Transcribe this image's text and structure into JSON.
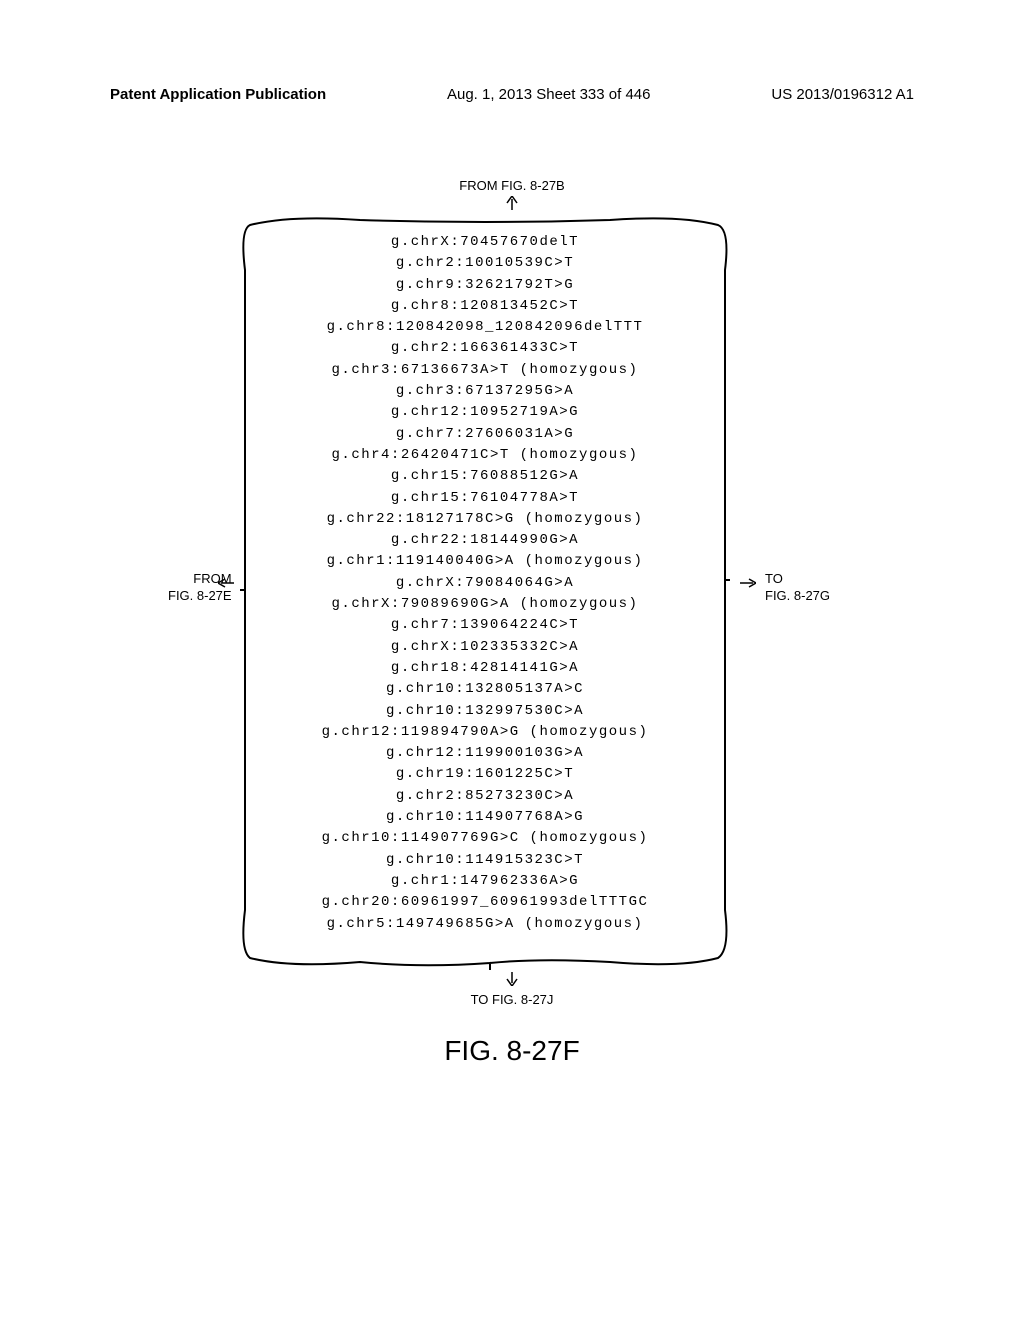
{
  "header": {
    "left": "Patent Application Publication",
    "center": "Aug. 1, 2013  Sheet 333 of 446",
    "right": "US 2013/0196312 A1"
  },
  "labels": {
    "top": "FROM FIG. 8-27B",
    "bottom": "TO FIG. 8-27J",
    "left_from": "FROM",
    "left_fig": "FIG. 8-27E",
    "right_to": "TO",
    "right_fig": "FIG. 8-27G"
  },
  "caption": "FIG. 8-27F",
  "entries": [
    "g.chrX:70457670delT",
    "g.chr2:10010539C>T",
    "g.chr9:32621792T>G",
    "g.chr8:120813452C>T",
    "g.chr8:120842098_120842096delTTT",
    "g.chr2:166361433C>T",
    "g.chr3:67136673A>T (homozygous)",
    "g.chr3:67137295G>A",
    "g.chr12:10952719A>G",
    "g.chr7:27606031A>G",
    "g.chr4:26420471C>T (homozygous)",
    "g.chr15:76088512G>A",
    "g.chr15:76104778A>T",
    "g.chr22:18127178C>G (homozygous)",
    "g.chr22:18144990G>A",
    "g.chr1:119140040G>A (homozygous)",
    "g.chrX:79084064G>A",
    "g.chrX:79089690G>A (homozygous)",
    "g.chr7:139064224C>T",
    "g.chrX:102335332C>A",
    "g.chr18:42814141G>A",
    "g.chr10:132805137A>C",
    "g.chr10:132997530C>A",
    "g.chr12:119894790A>G (homozygous)",
    "g.chr12:119900103G>A",
    "g.chr19:1601225C>T",
    "g.chr2:85273230C>A",
    "g.chr10:114907768A>G",
    "g.chr10:114907769G>C (homozygous)",
    "g.chr10:114915323C>T",
    "g.chr1:147962336A>G",
    "g.chr20:60961997_60961993delTTTGC",
    "g.chr5:149749685G>A (homozygous)"
  ],
  "style": {
    "page_bg": "#ffffff",
    "text_color": "#000000",
    "line_color": "#000000",
    "line_width": 2,
    "mono_font": "Courier New",
    "sans_font": "Arial",
    "entry_fontsize": 14,
    "label_fontsize": 13,
    "header_fontsize": 15,
    "caption_fontsize": 28
  }
}
